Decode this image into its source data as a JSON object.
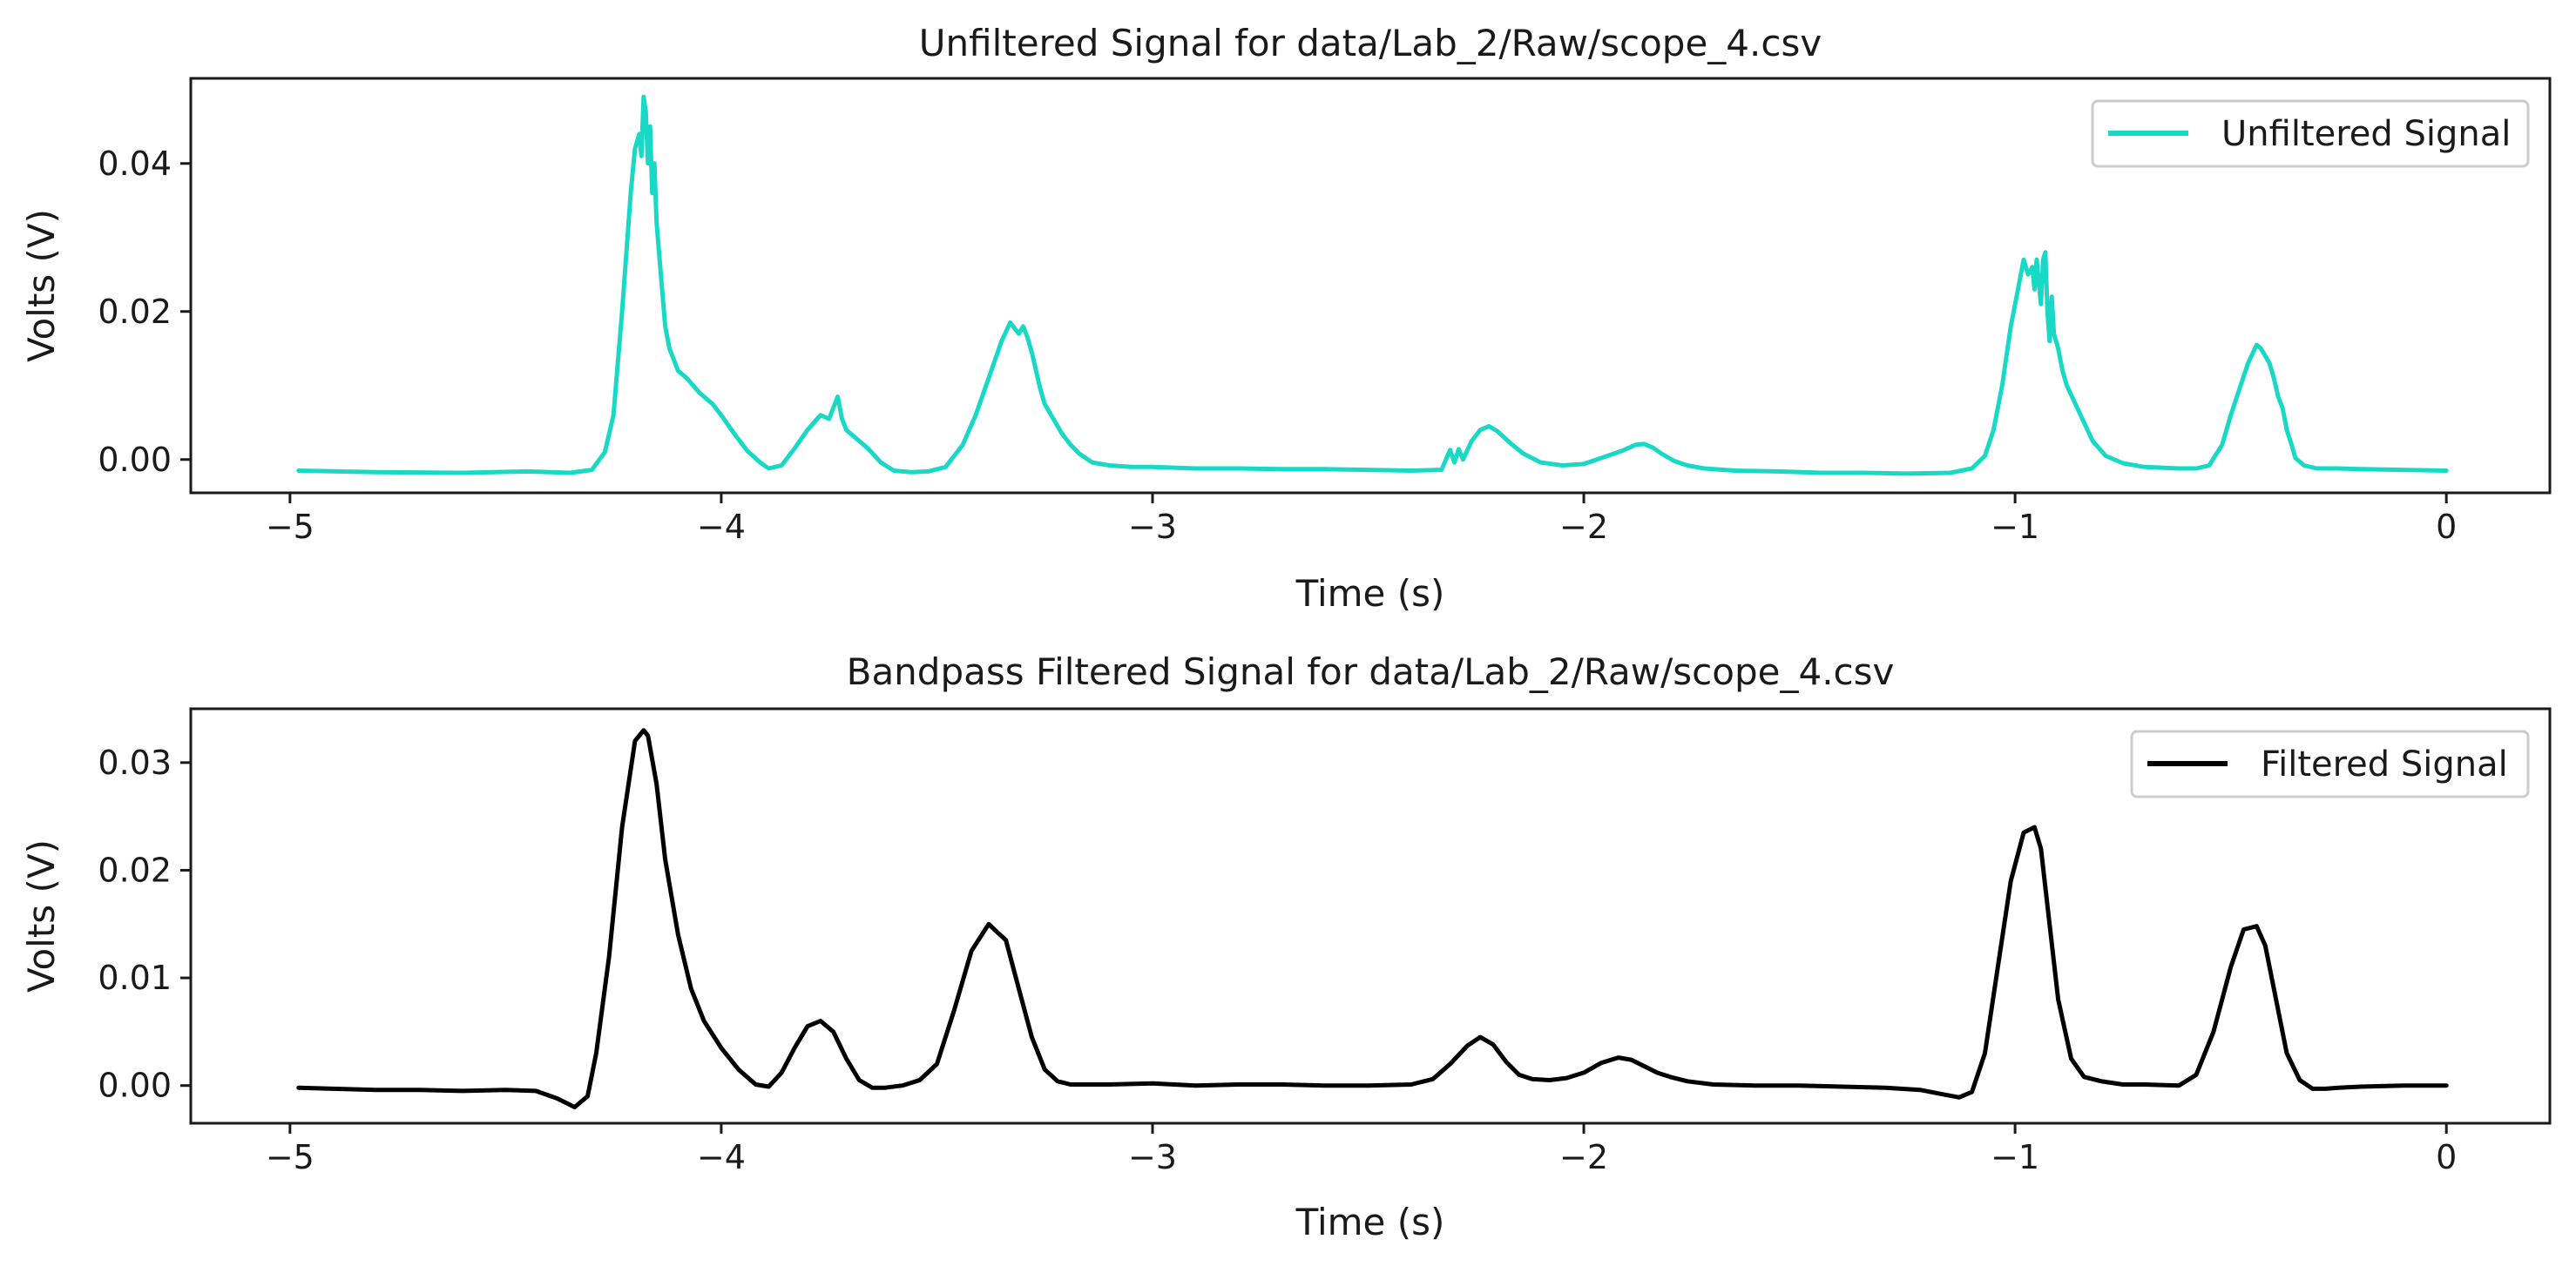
{
  "chart_data": [
    {
      "type": "line",
      "title": "Unfiltered Signal for data/Lab_2/Raw/scope_4.csv",
      "xlabel": "Time (s)",
      "ylabel": "Volts (V)",
      "xlim": [
        -5.23,
        0.24
      ],
      "ylim": [
        -0.0045,
        0.0515
      ],
      "xticks": [
        -5,
        -4,
        -3,
        -2,
        -1,
        0
      ],
      "xtick_labels": [
        "−5",
        "−4",
        "−3",
        "−2",
        "−1",
        "0"
      ],
      "yticks": [
        0.0,
        0.02,
        0.04
      ],
      "ytick_labels": [
        "0.00",
        "0.02",
        "0.04"
      ],
      "legend_position": "upper-right",
      "grid": false,
      "series": [
        {
          "name": "Unfiltered Signal",
          "color": "#17d9c6",
          "x": [
            -4.98,
            -4.8,
            -4.6,
            -4.45,
            -4.35,
            -4.3,
            -4.27,
            -4.25,
            -4.23,
            -4.21,
            -4.2,
            -4.19,
            -4.185,
            -4.18,
            -4.175,
            -4.17,
            -4.165,
            -4.16,
            -4.155,
            -4.15,
            -4.14,
            -4.13,
            -4.12,
            -4.1,
            -4.08,
            -4.05,
            -4.02,
            -4.0,
            -3.97,
            -3.94,
            -3.91,
            -3.89,
            -3.86,
            -3.83,
            -3.8,
            -3.77,
            -3.75,
            -3.73,
            -3.72,
            -3.71,
            -3.69,
            -3.66,
            -3.63,
            -3.6,
            -3.56,
            -3.52,
            -3.48,
            -3.44,
            -3.41,
            -3.38,
            -3.35,
            -3.33,
            -3.31,
            -3.3,
            -3.29,
            -3.28,
            -3.27,
            -3.26,
            -3.25,
            -3.23,
            -3.21,
            -3.19,
            -3.17,
            -3.14,
            -3.1,
            -3.05,
            -3.0,
            -2.9,
            -2.8,
            -2.7,
            -2.6,
            -2.5,
            -2.4,
            -2.33,
            -2.31,
            -2.3,
            -2.29,
            -2.28,
            -2.26,
            -2.24,
            -2.22,
            -2.2,
            -2.17,
            -2.14,
            -2.1,
            -2.05,
            -2.0,
            -1.95,
            -1.91,
            -1.88,
            -1.86,
            -1.84,
            -1.82,
            -1.79,
            -1.76,
            -1.72,
            -1.65,
            -1.55,
            -1.45,
            -1.35,
            -1.25,
            -1.15,
            -1.1,
            -1.07,
            -1.05,
            -1.03,
            -1.01,
            -0.99,
            -0.98,
            -0.97,
            -0.96,
            -0.955,
            -0.95,
            -0.945,
            -0.94,
            -0.935,
            -0.93,
            -0.925,
            -0.92,
            -0.915,
            -0.91,
            -0.9,
            -0.89,
            -0.88,
            -0.86,
            -0.84,
            -0.82,
            -0.79,
            -0.75,
            -0.7,
            -0.62,
            -0.58,
            -0.55,
            -0.52,
            -0.5,
            -0.48,
            -0.46,
            -0.44,
            -0.43,
            -0.42,
            -0.41,
            -0.4,
            -0.39,
            -0.38,
            -0.37,
            -0.36,
            -0.35,
            -0.33,
            -0.3,
            -0.25,
            -0.2,
            -0.1,
            0.0
          ],
          "y": [
            -0.0015,
            -0.0017,
            -0.0018,
            -0.0016,
            -0.0018,
            -0.0014,
            0.001,
            0.006,
            0.02,
            0.036,
            0.042,
            0.044,
            0.041,
            0.049,
            0.047,
            0.04,
            0.045,
            0.036,
            0.04,
            0.032,
            0.025,
            0.018,
            0.015,
            0.012,
            0.011,
            0.009,
            0.0075,
            0.006,
            0.0035,
            0.0012,
            -0.0004,
            -0.0012,
            -0.0008,
            0.0015,
            0.004,
            0.006,
            0.0055,
            0.0085,
            0.0055,
            0.004,
            0.003,
            0.0015,
            -0.0004,
            -0.0015,
            -0.0017,
            -0.0016,
            -0.001,
            0.002,
            0.006,
            0.011,
            0.016,
            0.0185,
            0.017,
            0.018,
            0.0165,
            0.0145,
            0.012,
            0.0095,
            0.0075,
            0.0055,
            0.0035,
            0.002,
            0.0008,
            -0.0004,
            -0.0008,
            -0.001,
            -0.001,
            -0.0012,
            -0.0012,
            -0.0013,
            -0.0013,
            -0.0014,
            -0.0015,
            -0.0014,
            0.0013,
            -0.0004,
            0.0014,
            0.0,
            0.0025,
            0.004,
            0.0045,
            0.0038,
            0.0022,
            0.0008,
            -0.0004,
            -0.0008,
            -0.0006,
            0.0004,
            0.0012,
            0.002,
            0.0021,
            0.0016,
            0.0008,
            -0.0002,
            -0.0008,
            -0.0012,
            -0.0015,
            -0.0016,
            -0.0018,
            -0.0018,
            -0.0019,
            -0.0018,
            -0.0012,
            0.0005,
            0.004,
            0.01,
            0.018,
            0.024,
            0.027,
            0.025,
            0.026,
            0.023,
            0.027,
            0.024,
            0.021,
            0.027,
            0.028,
            0.02,
            0.016,
            0.022,
            0.017,
            0.015,
            0.012,
            0.01,
            0.0075,
            0.005,
            0.0025,
            0.0005,
            -0.0005,
            -0.001,
            -0.0012,
            -0.0012,
            -0.0008,
            0.002,
            0.006,
            0.0095,
            0.013,
            0.0155,
            0.015,
            0.014,
            0.013,
            0.011,
            0.0085,
            0.007,
            0.004,
            0.0022,
            0.0002,
            -0.0008,
            -0.0012,
            -0.0012,
            -0.0013,
            -0.0014,
            -0.0015
          ]
        }
      ]
    },
    {
      "type": "line",
      "title": "Bandpass Filtered Signal for data/Lab_2/Raw/scope_4.csv",
      "xlabel": "Time (s)",
      "ylabel": "Volts (V)",
      "xlim": [
        -5.23,
        0.24
      ],
      "ylim": [
        -0.0035,
        0.035
      ],
      "xticks": [
        -5,
        -4,
        -3,
        -2,
        -1,
        0
      ],
      "xtick_labels": [
        "−5",
        "−4",
        "−3",
        "−2",
        "−1",
        "0"
      ],
      "yticks": [
        0.0,
        0.01,
        0.02,
        0.03
      ],
      "ytick_labels": [
        "0.00",
        "0.01",
        "0.02",
        "0.03"
      ],
      "legend_position": "upper-right",
      "grid": false,
      "series": [
        {
          "name": "Filtered Signal",
          "color": "#000000",
          "x": [
            -4.98,
            -4.9,
            -4.8,
            -4.7,
            -4.6,
            -4.5,
            -4.43,
            -4.38,
            -4.34,
            -4.31,
            -4.29,
            -4.26,
            -4.23,
            -4.2,
            -4.18,
            -4.17,
            -4.15,
            -4.13,
            -4.1,
            -4.07,
            -4.04,
            -4.0,
            -3.96,
            -3.92,
            -3.89,
            -3.86,
            -3.83,
            -3.8,
            -3.77,
            -3.74,
            -3.71,
            -3.68,
            -3.65,
            -3.62,
            -3.58,
            -3.54,
            -3.5,
            -3.46,
            -3.42,
            -3.38,
            -3.34,
            -3.31,
            -3.28,
            -3.25,
            -3.22,
            -3.19,
            -3.15,
            -3.1,
            -3.0,
            -2.9,
            -2.8,
            -2.7,
            -2.6,
            -2.5,
            -2.4,
            -2.35,
            -2.31,
            -2.27,
            -2.24,
            -2.21,
            -2.18,
            -2.15,
            -2.12,
            -2.08,
            -2.04,
            -2.0,
            -1.96,
            -1.92,
            -1.89,
            -1.86,
            -1.83,
            -1.8,
            -1.76,
            -1.7,
            -1.6,
            -1.5,
            -1.4,
            -1.3,
            -1.22,
            -1.17,
            -1.13,
            -1.1,
            -1.07,
            -1.04,
            -1.01,
            -0.98,
            -0.955,
            -0.94,
            -0.92,
            -0.9,
            -0.87,
            -0.84,
            -0.8,
            -0.75,
            -0.7,
            -0.62,
            -0.58,
            -0.54,
            -0.5,
            -0.47,
            -0.44,
            -0.42,
            -0.4,
            -0.37,
            -0.34,
            -0.31,
            -0.28,
            -0.25,
            -0.2,
            -0.1,
            0.0
          ],
          "y": [
            -0.0002,
            -0.0003,
            -0.0004,
            -0.0004,
            -0.0005,
            -0.0004,
            -0.0005,
            -0.0012,
            -0.002,
            -0.001,
            0.003,
            0.012,
            0.024,
            0.032,
            0.033,
            0.0325,
            0.028,
            0.021,
            0.014,
            0.009,
            0.006,
            0.0035,
            0.0015,
            0.0001,
            -0.0001,
            0.0012,
            0.0035,
            0.0055,
            0.006,
            0.005,
            0.0025,
            0.0005,
            -0.0002,
            -0.0002,
            0.0,
            0.0005,
            0.002,
            0.007,
            0.0125,
            0.015,
            0.0135,
            0.009,
            0.0045,
            0.0015,
            0.0004,
            0.0001,
            0.0001,
            0.0001,
            0.0002,
            0.0,
            0.0001,
            0.0001,
            0.0,
            0.0,
            0.0001,
            0.0006,
            0.002,
            0.0037,
            0.0045,
            0.0038,
            0.0022,
            0.001,
            0.0006,
            0.0005,
            0.0007,
            0.0012,
            0.0021,
            0.0026,
            0.0024,
            0.0018,
            0.0012,
            0.0008,
            0.0004,
            0.0001,
            0.0,
            0.0,
            -0.0001,
            -0.0002,
            -0.0004,
            -0.0008,
            -0.0011,
            -0.0006,
            0.003,
            0.011,
            0.019,
            0.0235,
            0.024,
            0.022,
            0.015,
            0.008,
            0.0025,
            0.0008,
            0.0004,
            0.0001,
            0.0001,
            0.0,
            0.001,
            0.005,
            0.011,
            0.0145,
            0.0148,
            0.013,
            0.009,
            0.003,
            0.0005,
            -0.0003,
            -0.0003,
            -0.0002,
            -0.0001,
            0.0,
            0.0
          ]
        }
      ]
    }
  ]
}
